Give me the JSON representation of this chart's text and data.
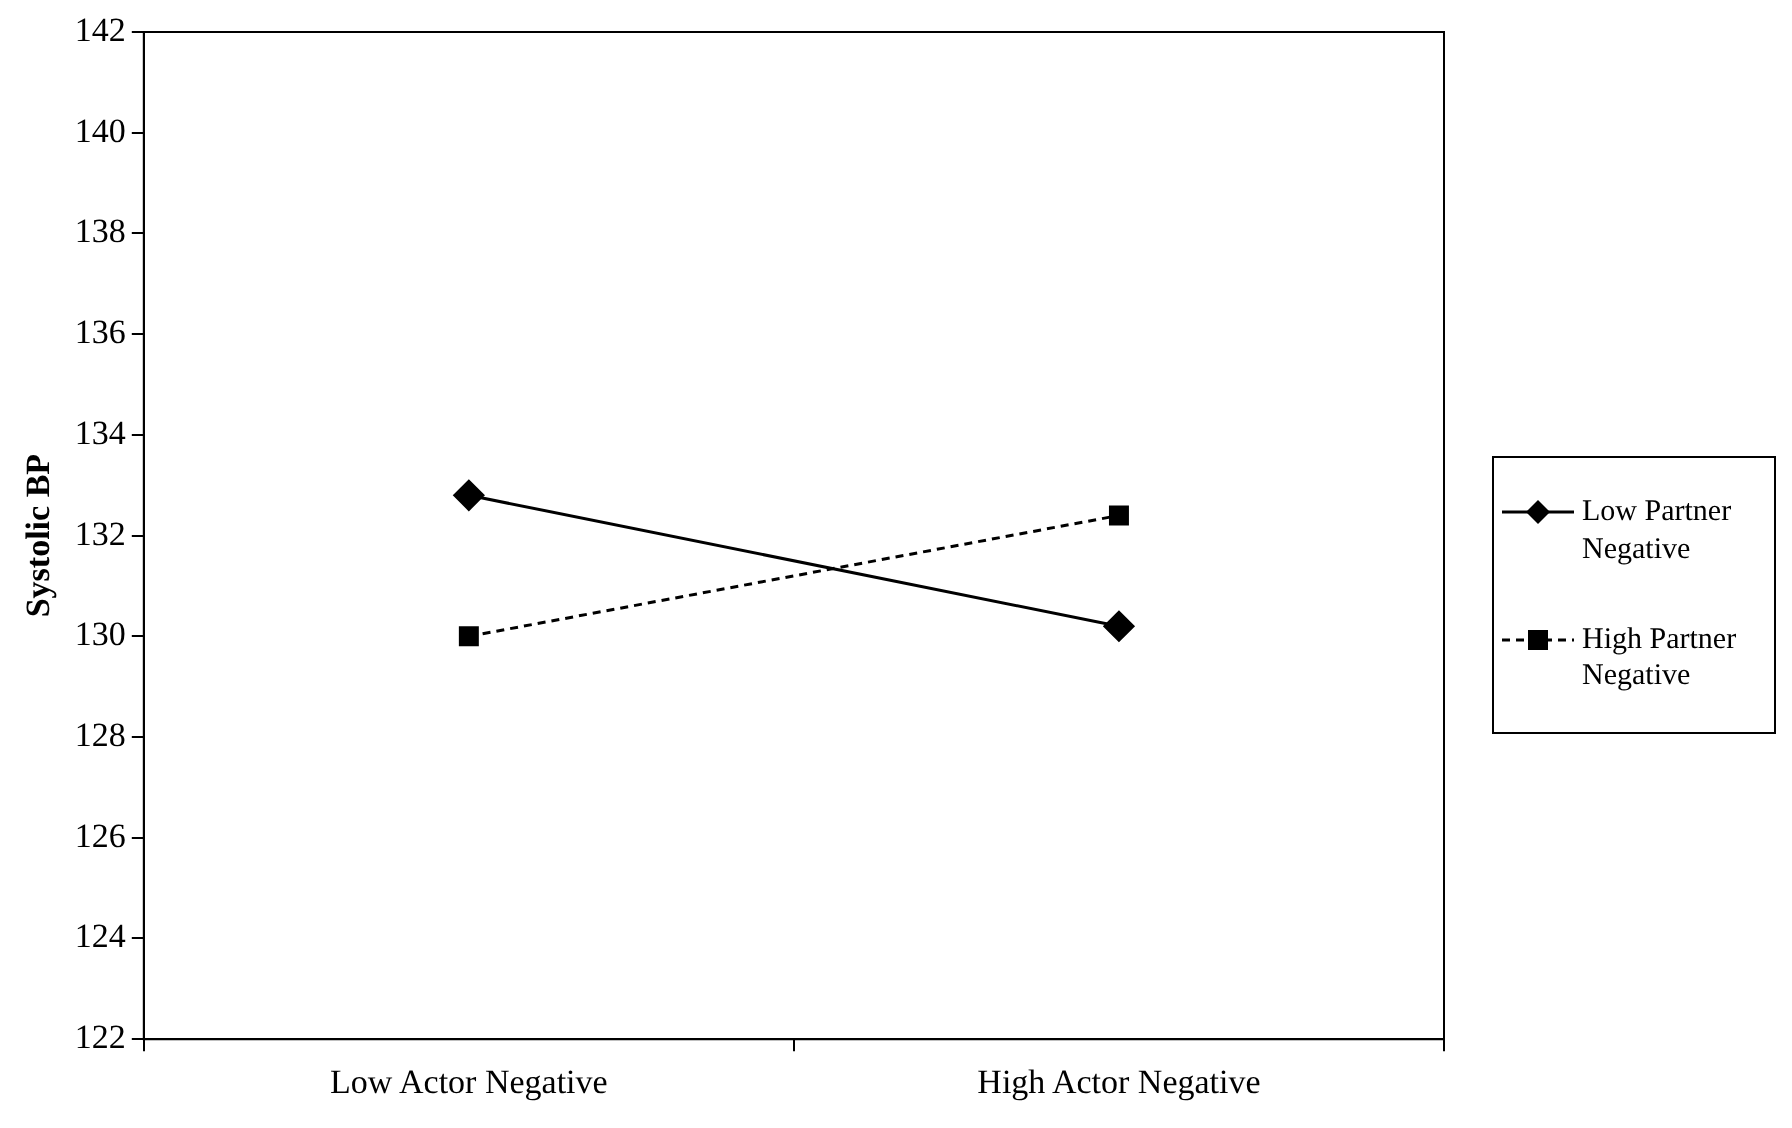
{
  "chart_data": {
    "type": "line",
    "ylabel": "Systolic BP",
    "categories": [
      "Low Actor Negative",
      "High Actor Negative"
    ],
    "series": [
      {
        "name": "Low Partner Negative",
        "color": "#000000",
        "values": [
          132.8,
          130.2
        ],
        "marker": "diamond",
        "line_style": "solid"
      },
      {
        "name": "High Partner Negative",
        "color": "#000000",
        "values": [
          130.0,
          132.4
        ],
        "marker": "square",
        "line_style": "dashed"
      }
    ],
    "ylim": [
      122,
      142
    ],
    "yticks": [
      122,
      124,
      126,
      128,
      130,
      132,
      134,
      136,
      138,
      140,
      142
    ],
    "grid": false,
    "legend": "right"
  }
}
